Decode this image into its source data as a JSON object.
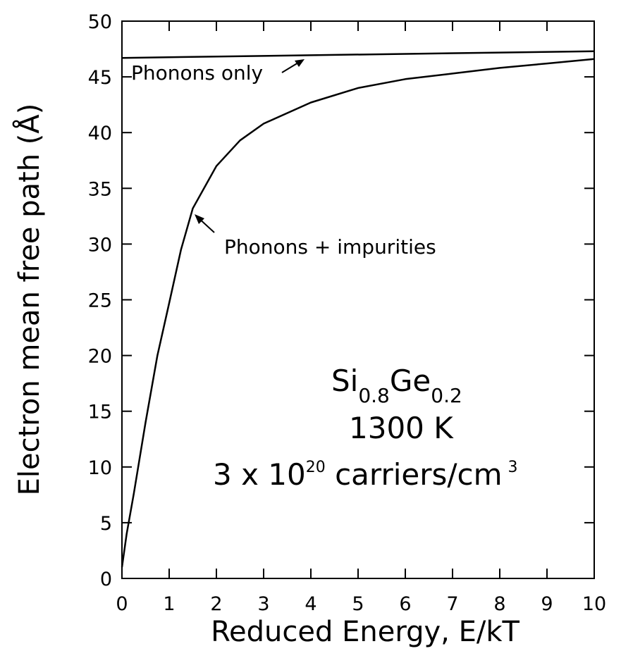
{
  "chart_data": {
    "type": "line",
    "x_label": "Reduced Energy,  E/kT",
    "y_label": "Electron mean free path (Å)",
    "xlim": [
      0,
      10
    ],
    "ylim": [
      0,
      50
    ],
    "xticks": [
      0,
      1,
      2,
      3,
      4,
      5,
      6,
      7,
      8,
      9,
      10
    ],
    "yticks": [
      0,
      5,
      10,
      15,
      20,
      25,
      30,
      35,
      40,
      45,
      50
    ],
    "series": [
      {
        "name": "Phonons only",
        "color": "#000000",
        "x": [
          0,
          10
        ],
        "values": [
          46.7,
          47.3
        ]
      },
      {
        "name": "Phonons + impurities",
        "color": "#000000",
        "x": [
          0,
          0.1,
          0.25,
          0.5,
          0.75,
          1,
          1.25,
          1.5,
          2,
          2.5,
          3,
          4,
          5,
          6,
          7,
          8,
          9,
          10
        ],
        "values": [
          1,
          4,
          7.6,
          14,
          20,
          24.7,
          29.5,
          33.2,
          37,
          39.3,
          40.8,
          42.7,
          44,
          44.8,
          45.3,
          45.8,
          46.2,
          46.6
        ]
      }
    ],
    "annotations": {
      "material": [
        "Si",
        "0.8",
        "Ge",
        "0.2"
      ],
      "temperature": "1300 K",
      "carriers": [
        "3 x 10",
        "20",
        " carriers/cm",
        "3"
      ]
    }
  }
}
